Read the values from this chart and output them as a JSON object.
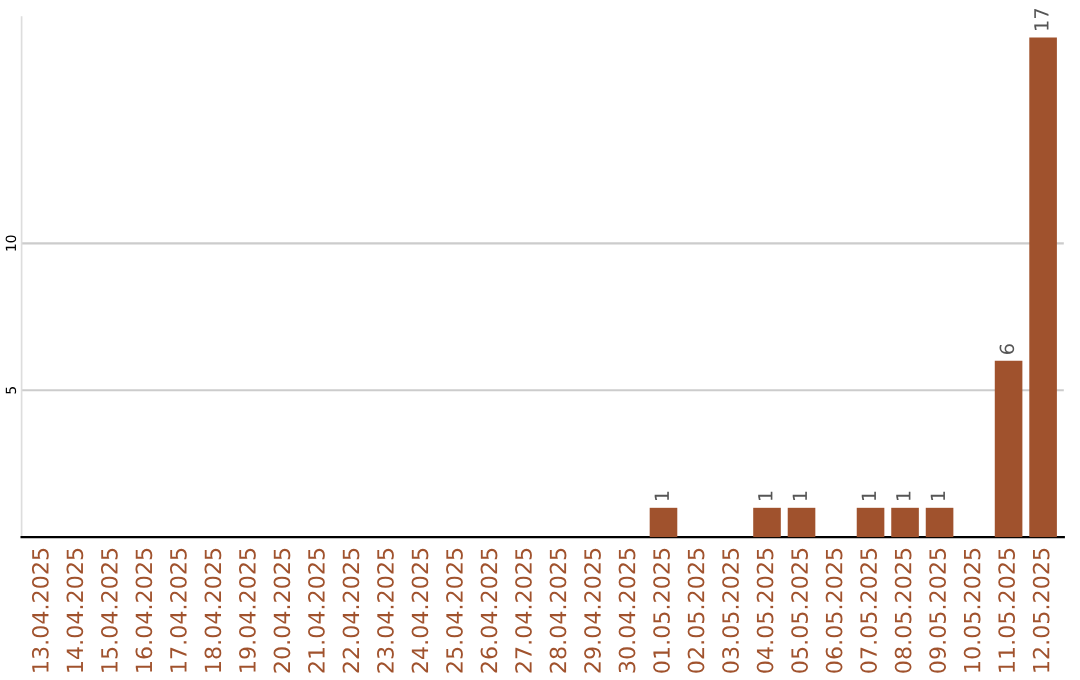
{
  "chart_data": {
    "type": "bar",
    "categories": [
      "13.04.2025",
      "14.04.2025",
      "15.04.2025",
      "16.04.2025",
      "17.04.2025",
      "18.04.2025",
      "19.04.2025",
      "20.04.2025",
      "21.04.2025",
      "22.04.2025",
      "23.04.2025",
      "24.04.2025",
      "25.04.2025",
      "26.04.2025",
      "27.04.2025",
      "28.04.2025",
      "29.04.2025",
      "30.04.2025",
      "01.05.2025",
      "02.05.2025",
      "03.05.2025",
      "04.05.2025",
      "05.05.2025",
      "06.05.2025",
      "07.05.2025",
      "08.05.2025",
      "09.05.2025",
      "10.05.2025",
      "11.05.2025",
      "12.05.2025"
    ],
    "values": [
      0,
      0,
      0,
      0,
      0,
      0,
      0,
      0,
      0,
      0,
      0,
      0,
      0,
      0,
      0,
      0,
      0,
      0,
      1,
      0,
      0,
      1,
      1,
      0,
      1,
      1,
      1,
      0,
      6,
      17
    ],
    "value_labels": [
      null,
      null,
      null,
      null,
      null,
      null,
      null,
      null,
      null,
      null,
      null,
      null,
      null,
      null,
      null,
      null,
      null,
      null,
      "1",
      null,
      null,
      "1",
      "1",
      null,
      "1",
      "1",
      "1",
      null,
      "6",
      "17"
    ],
    "color": "#a0522d",
    "ylim": [
      0,
      17.7
    ],
    "yticks": [
      5,
      10
    ],
    "grid": "y"
  }
}
